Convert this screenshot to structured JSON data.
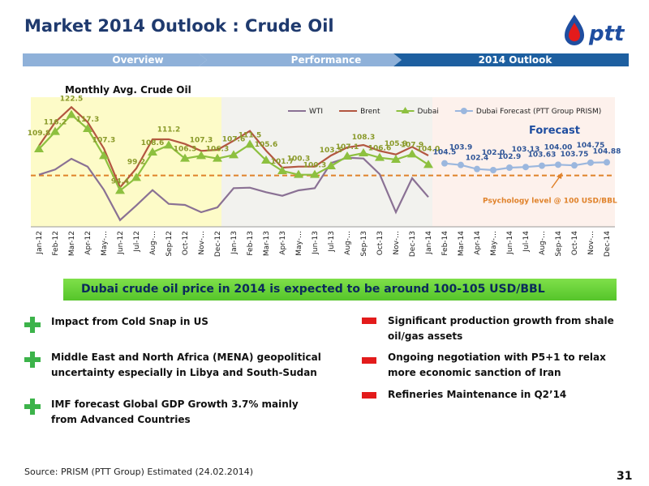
{
  "header": {
    "title": "Market 2014 Outlook : Crude Oil",
    "logo": "ptt"
  },
  "nav": [
    "Overview",
    "Performance",
    "2014 Outlook"
  ],
  "chart_data": {
    "type": "line",
    "title": "Monthly Avg.  Crude Oil",
    "categories": [
      "Jan-12",
      "Feb-12",
      "Mar-12",
      "Apr-12",
      "May-…",
      "Jun-12",
      "Jul-12",
      "Aug-…",
      "Sep-12",
      "Oct-12",
      "Nov-…",
      "Dec-12",
      "Jan-13",
      "Feb-13",
      "Mar-13",
      "Apr-13",
      "May-…",
      "Jun-13",
      "Jul-13",
      "Aug-…",
      "Sep-13",
      "Oct-13",
      "Nov-…",
      "Dec-13",
      "Jan-14",
      "Feb-14",
      "Mar-14",
      "Apr-14",
      "May-…",
      "Jun-14",
      "Jul-14",
      "Aug-…",
      "Sep-14",
      "Oct-14",
      "Nov-…",
      "Dec-14"
    ],
    "ylim": [
      81,
      129
    ],
    "series": [
      {
        "name": "WTI",
        "color": "#8a7194",
        "marker": "none",
        "values": [
          100.3,
          102.2,
          106.2,
          103.3,
          94.7,
          83.5,
          88.9,
          94.6,
          89.5,
          89.1,
          86.4,
          88.2,
          95.3,
          95.5,
          93.8,
          92.5,
          94.5,
          95.3,
          104.6,
          106.6,
          106.3,
          100.5,
          86.4,
          99.0,
          92.0,
          null,
          null,
          null,
          null,
          null,
          null,
          null,
          null,
          null,
          null,
          null
        ]
      },
      {
        "name": "Brent",
        "color": "#b35640",
        "marker": "none",
        "values": [
          111.0,
          119.7,
          125.3,
          119.8,
          110.0,
          95.6,
          102.6,
          113.4,
          113.4,
          111.7,
          109.1,
          109.5,
          112.9,
          116.5,
          109.2,
          102.9,
          103.3,
          103.3,
          107.4,
          110.4,
          111.3,
          109.1,
          107.8,
          110.6,
          107.4,
          null,
          null,
          null,
          null,
          null,
          null,
          null,
          null,
          null,
          null,
          null
        ]
      },
      {
        "name": "Dubai",
        "color": "#8dc03f",
        "marker": "triangle",
        "label_color": "#8a9a2a",
        "values": [
          109.8,
          116.2,
          122.5,
          117.3,
          107.3,
          94.4,
          99.2,
          108.6,
          111.2,
          106.3,
          107.3,
          106.3,
          107.6,
          111.5,
          105.6,
          101.7,
          100.3,
          100.3,
          103.5,
          107.1,
          108.3,
          106.6,
          105.9,
          107.9,
          104.0,
          null,
          null,
          null,
          null,
          null,
          null,
          null,
          null,
          null,
          null,
          null
        ],
        "value_labels": [
          "109.8",
          "116.2",
          "122.5",
          "117.3",
          "107.3",
          "94.4",
          "99.2",
          "108.6",
          "111.2",
          "106.3",
          "107.3",
          "106.3",
          "107.6",
          "111.5",
          "105.6",
          "101.7",
          "100.3",
          "100.3",
          "103.5",
          "107.1",
          "108.3",
          "106.6",
          "105.9",
          "107.9",
          "104.0",
          null,
          null,
          null,
          null,
          null,
          null,
          null,
          null,
          null,
          null,
          null
        ]
      },
      {
        "name": "Dubai Forecast (PTT Group PRISM)",
        "color": "#9bb7de",
        "marker": "circle",
        "label_color": "#2f5597",
        "values": [
          null,
          null,
          null,
          null,
          null,
          null,
          null,
          null,
          null,
          null,
          null,
          null,
          null,
          null,
          null,
          null,
          null,
          null,
          null,
          null,
          null,
          null,
          null,
          null,
          null,
          104.5,
          103.9,
          102.4,
          102.0,
          102.9,
          103.13,
          103.63,
          104.0,
          103.75,
          104.75,
          104.88
        ],
        "value_labels": [
          null,
          null,
          null,
          null,
          null,
          null,
          null,
          null,
          null,
          null,
          null,
          null,
          null,
          null,
          null,
          null,
          null,
          null,
          null,
          null,
          null,
          null,
          null,
          null,
          null,
          "104.5",
          "103.9",
          "102.4",
          "102.0",
          "102.9",
          "103.13",
          "103.63",
          "104.00",
          "103.75",
          "104.75",
          "104.88"
        ]
      }
    ],
    "reference_line": {
      "value": 100,
      "label": "Psychology level  @ 100 USD/BBL",
      "color": "#e0822a"
    },
    "annotation": "Forecast",
    "legend": "top"
  },
  "banner": "Dubai crude oil price in 2014 is expected to be around 100-105 USD/BBL",
  "positives": [
    "Impact from Cold Snap in US",
    "Middle East and North Africa (MENA) geopolitical uncertainty especially in Libya and South-Sudan",
    "IMF forecast Global GDP Growth 3.7% mainly from Advanced   Countries"
  ],
  "negatives": [
    "Significant production growth from shale oil/gas assets",
    "Ongoing negotiation with P5+1 to relax more economic sanction of Iran",
    "Refineries Maintenance in Q2’14"
  ],
  "source": "Source: PRISM (PTT Group) Estimated (24.02.2014)",
  "page_number": "31"
}
